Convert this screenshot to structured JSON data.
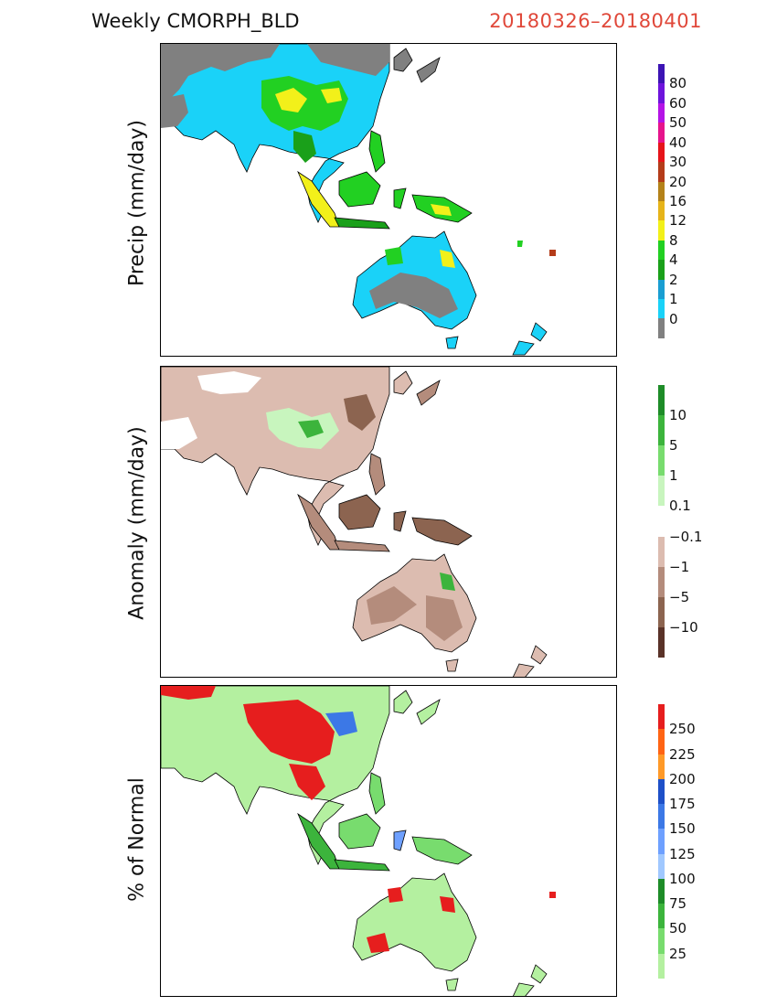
{
  "header": {
    "title": "Weekly  CMORPH_BLD",
    "date_range": "20180326–20180401"
  },
  "panels": [
    {
      "id": "precip",
      "ylabel": "Precip  (mm/day)",
      "colorbar": {
        "colors": [
          "#808080",
          "#1ad2f8",
          "#1a9ed2",
          "#1aa01a",
          "#22d022",
          "#f2f01a",
          "#e6b41a",
          "#b4821a",
          "#b43c1a",
          "#e6141a",
          "#e6148c",
          "#b414e6",
          "#6e14dc",
          "#3c14b4"
        ],
        "labels": [
          "0",
          "1",
          "2",
          "4",
          "8",
          "12",
          "16",
          "20",
          "30",
          "40",
          "50",
          "60",
          "80"
        ]
      }
    },
    {
      "id": "anomaly",
      "ylabel": "Anomaly  (mm/day)",
      "colorbar": {
        "colors": [
          "#5a3228",
          "#8c6450",
          "#b48c7c",
          "#dcbcb0",
          "#ffffff",
          "#c8f5be",
          "#78dc6e",
          "#3cb43c",
          "#1e8c28"
        ],
        "labels": [
          "−10",
          "−5",
          "−1",
          "−0.1",
          "0.1",
          "1",
          "5",
          "10"
        ]
      }
    },
    {
      "id": "percent",
      "ylabel": "%  of  Normal",
      "colorbar": {
        "colors": [
          "#b4f0a0",
          "#78dc6e",
          "#3cb43c",
          "#1e8c28",
          "#a0c8ff",
          "#6ea0ff",
          "#3c78e6",
          "#1e50c8",
          "#ff9a28",
          "#ff6414",
          "#e61e1e"
        ],
        "labels": [
          "25",
          "50",
          "75",
          "100",
          "125",
          "150",
          "175",
          "200",
          "225",
          "250"
        ]
      }
    }
  ]
}
